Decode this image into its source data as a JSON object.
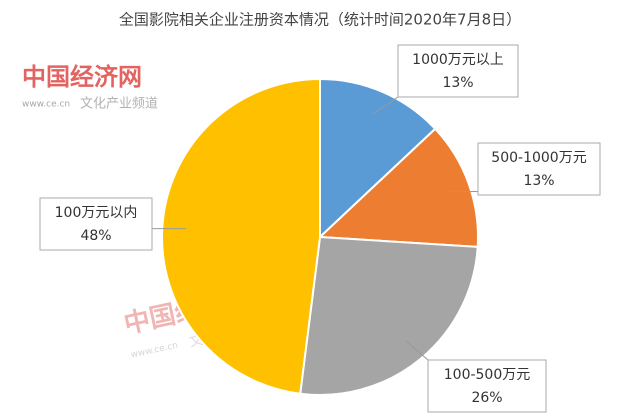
{
  "chart_data": {
    "type": "pie",
    "title": "全国影院相关企业注册资本情况（统计时间2020年7月8日）",
    "categories": [
      "1000万元以上",
      "500-1000万元",
      "100-500万元",
      "100万元以内"
    ],
    "values": [
      13,
      13,
      26,
      48
    ],
    "value_labels": [
      "13%",
      "13%",
      "26%",
      "48%"
    ],
    "colors": [
      "#5b9bd5",
      "#ed7d31",
      "#a5a5a5",
      "#ffc000"
    ]
  },
  "watermarks": [
    {
      "logo": "中国经济网",
      "url": "www.ce.cn",
      "channel": "文化产业频道"
    },
    {
      "logo": "中国经济网",
      "url": "www.ce.cn",
      "channel": "文化产业频道"
    }
  ]
}
